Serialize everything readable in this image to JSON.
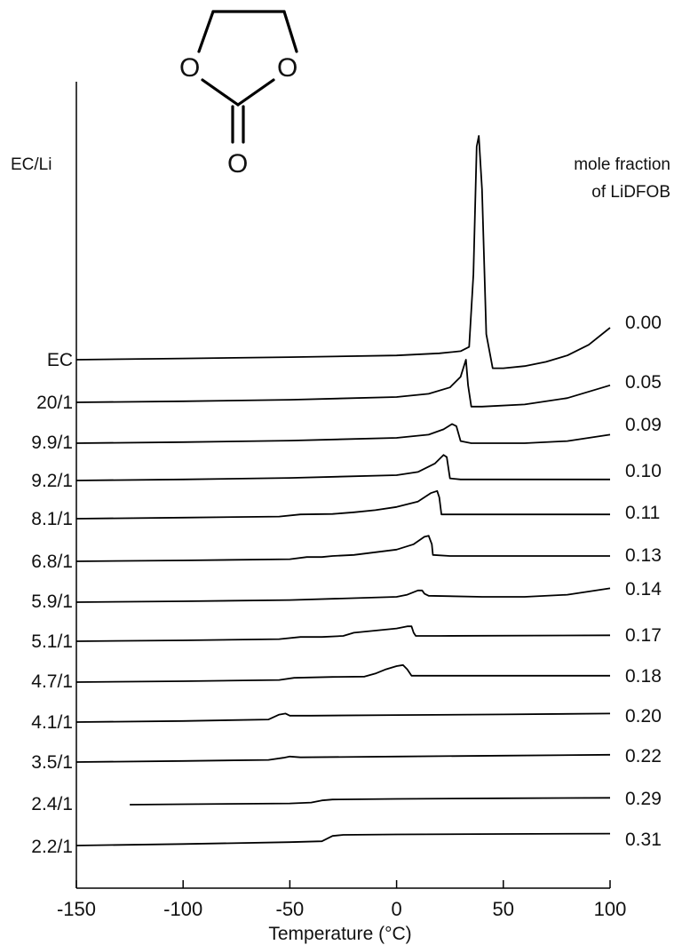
{
  "chart_data": {
    "type": "line",
    "xlabel": "Temperature (°C)",
    "xlim": [
      -150,
      100
    ],
    "x_ticks": [
      "-150",
      "-100",
      "-50",
      "0",
      "50",
      "100"
    ],
    "x_tick_values": [
      -150,
      -100,
      -50,
      0,
      50,
      100
    ],
    "grid": false,
    "left_header": "EC/Li",
    "right_header_line1": "mole fraction",
    "right_header_line2": "of LiDFOB",
    "molecule_atoms": {
      "ring_o_left": "O",
      "ring_o_right": "O",
      "carbonyl_o": "O"
    },
    "series": [
      {
        "ratio": "EC",
        "fraction": "0.00",
        "x": [
          -150,
          -100,
          -50,
          0,
          20,
          30,
          34,
          36,
          37.5,
          38.5,
          40,
          42,
          45,
          50,
          60,
          70,
          80,
          90,
          100
        ],
        "y": [
          0,
          0.6,
          1.2,
          2,
          3,
          4,
          6,
          40,
          100,
          105,
          80,
          12,
          -4,
          -4,
          -3,
          -1,
          2,
          7,
          15
        ]
      },
      {
        "ratio": "20/1",
        "fraction": "0.05",
        "x": [
          -150,
          -100,
          -50,
          0,
          15,
          25,
          30,
          32.5,
          33.5,
          35,
          40,
          60,
          80,
          100
        ],
        "y": [
          0,
          0.5,
          1.2,
          2.5,
          4,
          7,
          12,
          20,
          8,
          -2,
          -2,
          -1,
          2,
          8
        ]
      },
      {
        "ratio": "9.9/1",
        "fraction": "0.09",
        "x": [
          -150,
          -100,
          -50,
          0,
          15,
          22,
          26,
          28,
          30,
          35,
          60,
          80,
          100
        ],
        "y": [
          0,
          0.5,
          1.2,
          2.5,
          4,
          6.5,
          9,
          8,
          1,
          0,
          0,
          1,
          4
        ]
      },
      {
        "ratio": "9.2/1",
        "fraction": "0.10",
        "x": [
          -150,
          -100,
          -50,
          0,
          10,
          18,
          22,
          23.5,
          25,
          30,
          60,
          100
        ],
        "y": [
          0,
          0.5,
          1.2,
          2.5,
          4,
          8,
          12,
          11,
          1,
          0.5,
          0.5,
          0.5
        ]
      },
      {
        "ratio": "8.1/1",
        "fraction": "0.11",
        "x": [
          -150,
          -100,
          -55,
          -45,
          -30,
          -20,
          -10,
          0,
          10,
          16,
          19,
          20,
          21,
          25,
          50,
          100
        ],
        "y": [
          0,
          0.5,
          1,
          2,
          2.2,
          3,
          4,
          5.5,
          8,
          12,
          13,
          10,
          2,
          2,
          2,
          2
        ]
      },
      {
        "ratio": "6.8/1",
        "fraction": "0.13",
        "x": [
          -150,
          -100,
          -50,
          -42,
          -35,
          -30,
          -20,
          0,
          8,
          13,
          15,
          16.5,
          17,
          25,
          100
        ],
        "y": [
          0,
          0.4,
          1,
          2,
          2,
          2.5,
          3,
          5.5,
          8,
          11.5,
          12,
          8,
          3,
          2.5,
          2.5
        ]
      },
      {
        "ratio": "5.9/1",
        "fraction": "0.14",
        "x": [
          -150,
          -100,
          -50,
          0,
          5,
          10,
          12,
          13,
          15,
          40,
          60,
          80,
          100
        ],
        "y": [
          0,
          0.4,
          1,
          2.5,
          3.5,
          5.5,
          5.5,
          4,
          3,
          2.5,
          2.5,
          3.5,
          6.5
        ]
      },
      {
        "ratio": "5.1/1",
        "fraction": "0.17",
        "x": [
          -150,
          -100,
          -55,
          -45,
          -35,
          -25,
          -20,
          -10,
          0,
          5,
          7,
          8,
          9,
          20,
          100
        ],
        "y": [
          0,
          0.4,
          1,
          2,
          2,
          2.5,
          4,
          5,
          6,
          7,
          7,
          4,
          2.5,
          2.5,
          2.8
        ]
      },
      {
        "ratio": "4.7/1",
        "fraction": "0.18",
        "x": [
          -150,
          -100,
          -55,
          -48,
          -30,
          -15,
          -10,
          -5,
          0,
          3,
          5,
          7,
          20,
          100
        ],
        "y": [
          0,
          0.4,
          1,
          2,
          2.4,
          2.6,
          4,
          6,
          7.5,
          8,
          6,
          3,
          3,
          3
        ]
      },
      {
        "ratio": "4.1/1",
        "fraction": "0.20",
        "x": [
          -150,
          -100,
          -60,
          -55,
          -52,
          -50,
          -40,
          0,
          50,
          100
        ],
        "y": [
          0,
          0.5,
          1.2,
          3.5,
          4,
          3,
          3,
          3.3,
          3.6,
          4
        ]
      },
      {
        "ratio": "3.5/1",
        "fraction": "0.22",
        "x": [
          -150,
          -100,
          -60,
          -53,
          -50,
          -45,
          0,
          50,
          100
        ],
        "y": [
          0,
          0.5,
          1,
          2,
          2.6,
          2.2,
          2.6,
          3,
          3.4
        ]
      },
      {
        "ratio": "2.4/1",
        "fraction": "0.29",
        "x": [
          -125,
          -100,
          -50,
          -40,
          -35,
          -30,
          0,
          50,
          100
        ],
        "y": [
          0,
          0.2,
          0.6,
          1,
          2,
          2.4,
          2.7,
          3,
          3.2
        ]
      },
      {
        "ratio": "2.2/1",
        "fraction": "0.31",
        "x": [
          -150,
          -100,
          -50,
          -35,
          -30,
          -25,
          0,
          50,
          100
        ],
        "y": [
          0,
          0.7,
          1.6,
          2,
          4.5,
          5,
          5.2,
          5.4,
          5.6
        ]
      }
    ]
  }
}
